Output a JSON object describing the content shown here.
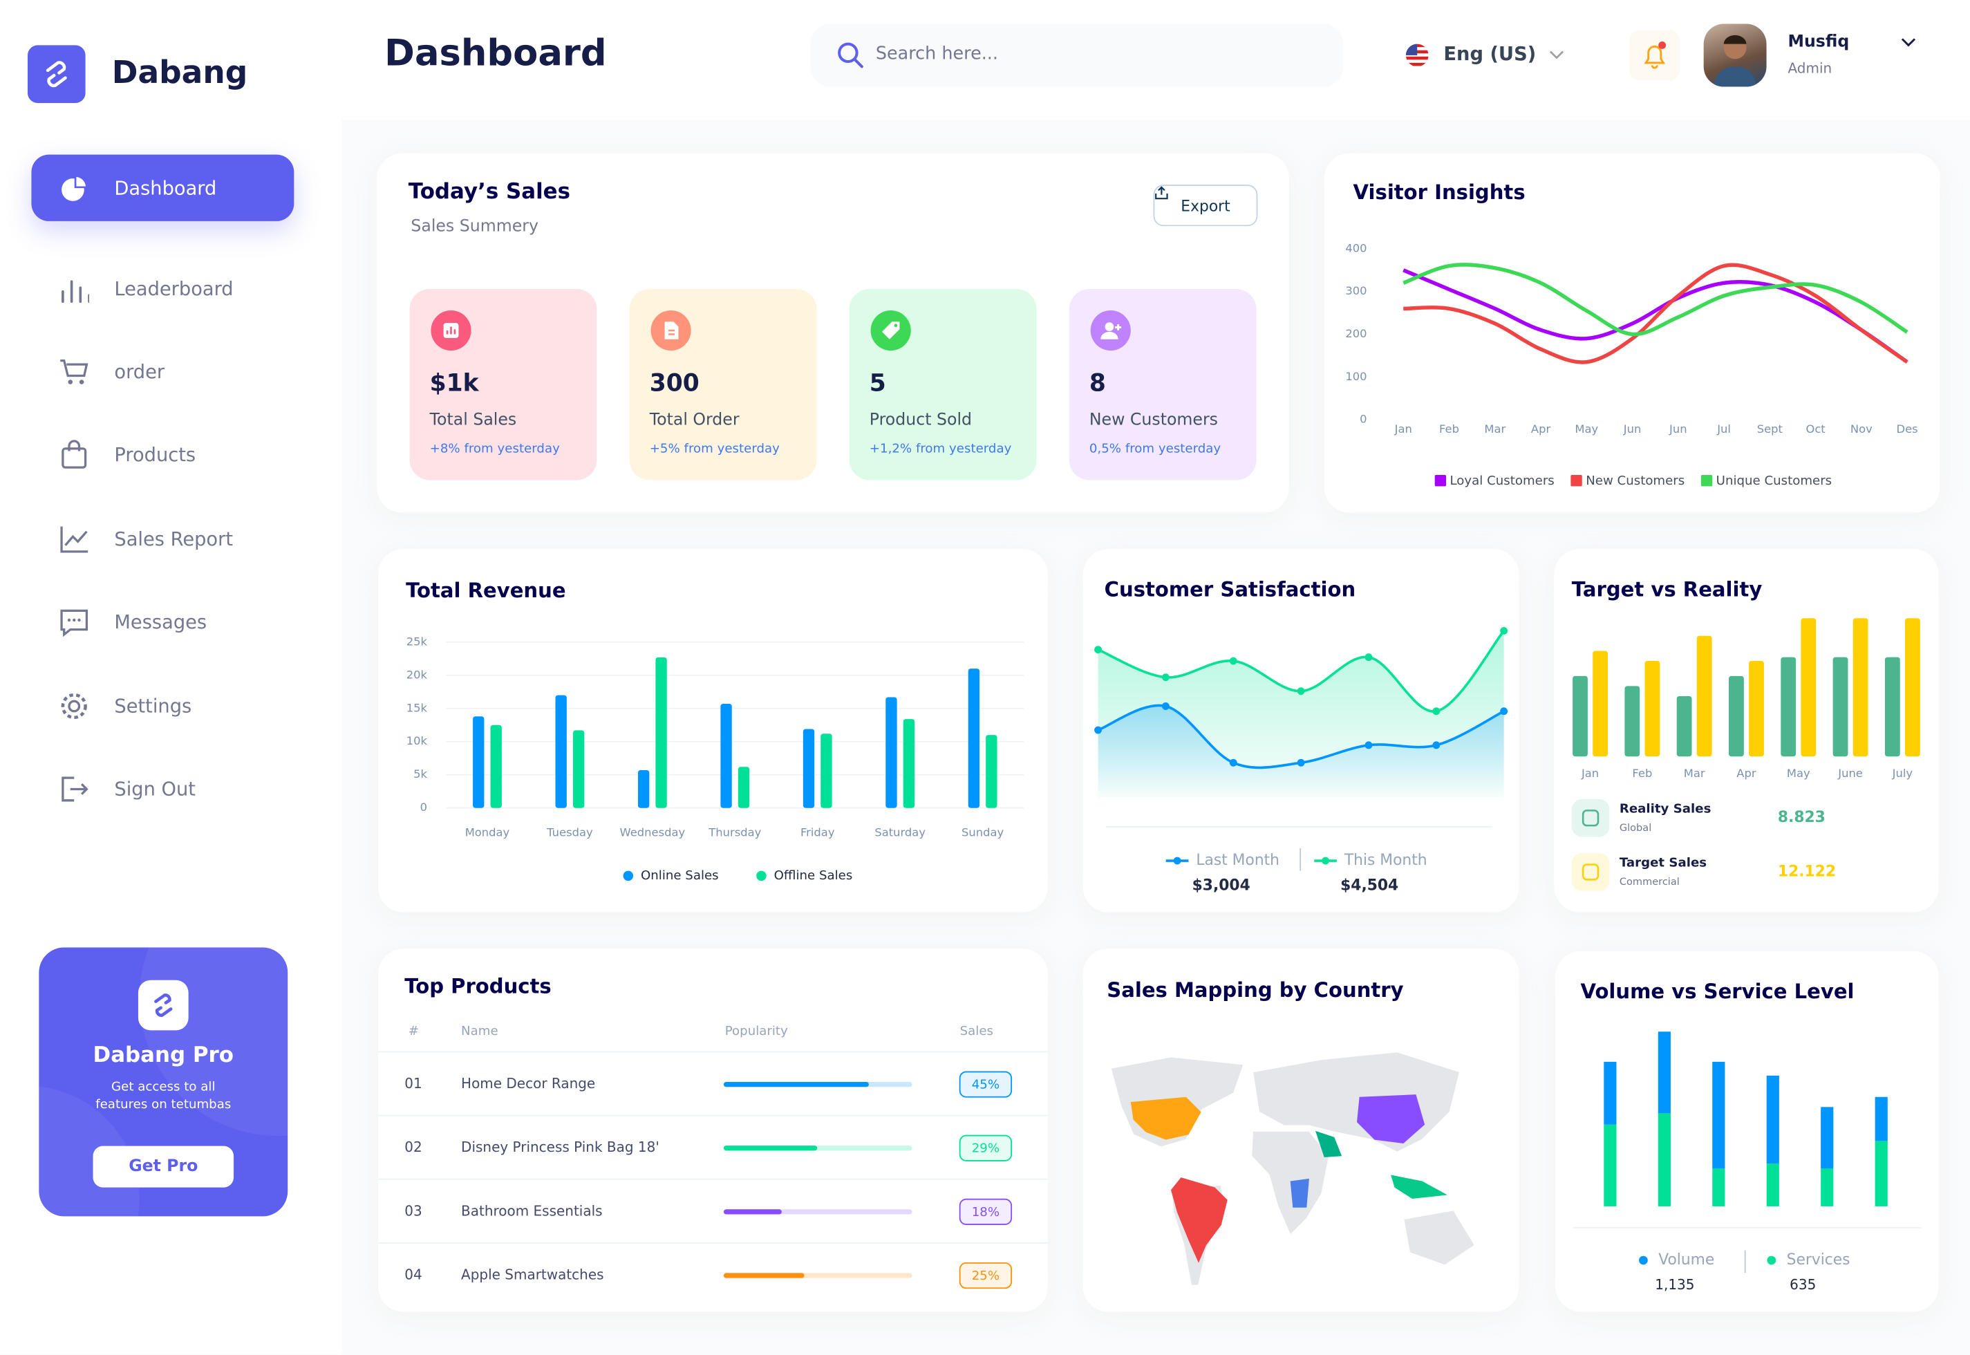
{
  "sidebar": {
    "brand": "Dabang",
    "menu": [
      "Dashboard",
      "Leaderboard",
      "order",
      "Products",
      "Sales Report",
      "Messages",
      "Settings",
      "Sign Out"
    ],
    "promo": {
      "title": "Dabang Pro",
      "text": "Get access to all features on tetumbas",
      "button": "Get Pro"
    }
  },
  "header": {
    "title": "Dashboard",
    "search_placeholder": "Search here...",
    "language": "Eng (US)",
    "user": {
      "name": "Musfiq",
      "role": "Admin"
    }
  },
  "todays_sales": {
    "title": "Today’s Sales",
    "subtitle": "Sales Summery",
    "export": "Export",
    "cards": [
      {
        "value": "$1k",
        "label": "Total Sales",
        "change": "+8% from yesterday"
      },
      {
        "value": 300,
        "label": "Total Order",
        "change": "+5% from yesterday"
      },
      {
        "value": 5,
        "label": "Product Sold",
        "change": "+1,2% from yesterday"
      },
      {
        "value": 8,
        "label": "New Customers",
        "change": "0,5% from yesterday"
      }
    ]
  },
  "chart_data": [
    {
      "type": "line",
      "title": "Visitor Insights",
      "categories": [
        "Jan",
        "Feb",
        "Mar",
        "Apr",
        "May",
        "Jun",
        "Jun",
        "Jul",
        "Sept",
        "Oct",
        "Nov",
        "Des"
      ],
      "ylim": [
        0,
        400
      ],
      "yticks": [
        0,
        100,
        200,
        300,
        400
      ],
      "series": [
        {
          "name": "Loyal Customers",
          "color": "#a700ff",
          "values": [
            350,
            305,
            260,
            210,
            190,
            225,
            285,
            320,
            315,
            275,
            210,
            135
          ]
        },
        {
          "name": "New Customers",
          "color": "#ef4444",
          "values": [
            260,
            260,
            225,
            165,
            135,
            190,
            290,
            360,
            340,
            290,
            210,
            135
          ]
        },
        {
          "name": "Unique Customers",
          "color": "#3cd856",
          "values": [
            320,
            360,
            355,
            320,
            255,
            200,
            240,
            290,
            310,
            315,
            275,
            205
          ]
        }
      ]
    },
    {
      "type": "bar",
      "title": "Total Revenue",
      "categories": [
        "Monday",
        "Tuesday",
        "Wednesday",
        "Thursday",
        "Friday",
        "Saturday",
        "Sunday"
      ],
      "ylim": [
        0,
        25000
      ],
      "grid": true,
      "yticks": [
        0,
        {
          "value": 5000,
          "label": "5k"
        },
        {
          "value": 10000,
          "label": "10k"
        },
        {
          "value": 15000,
          "label": "15k"
        },
        {
          "value": 20000,
          "label": "20k"
        },
        {
          "value": 25000,
          "label": "25k"
        }
      ],
      "series": [
        {
          "name": "Online Sales",
          "color": "#0095ff",
          "values": [
            13800,
            17000,
            5700,
            15700,
            11900,
            16700,
            21000
          ]
        },
        {
          "name": "Offline Sales",
          "color": "#00e096",
          "values": [
            12500,
            11700,
            22700,
            6200,
            11200,
            13400,
            11000
          ]
        }
      ]
    },
    {
      "type": "area",
      "title": "Customer Satisfaction",
      "categories": [
        null,
        null,
        null,
        null,
        null,
        null,
        null
      ],
      "series": [
        {
          "name": "Last Month",
          "color": "#0095ff",
          "total": "$3,004",
          "values": [
            119,
            138,
            93,
            93,
            107,
            107,
            134
          ]
        },
        {
          "name": "This Month",
          "color": "#07e098",
          "total": "$4,504",
          "values": [
            183,
            161,
            174,
            150,
            177,
            134,
            198
          ]
        }
      ]
    },
    {
      "type": "bar",
      "title": "Target vs Reality",
      "categories": [
        "Jan",
        "Feb",
        "Mar",
        "Apr",
        "May",
        "June",
        "July"
      ],
      "series": [
        {
          "name": "Reality Sales",
          "subtitle": "Global",
          "total": "8.823",
          "color": "#4ab58e",
          "values": [
            64,
            56,
            48,
            64,
            79,
            79,
            79
          ]
        },
        {
          "name": "Target Sales",
          "subtitle": "Commercial",
          "total": "12.122",
          "color": "#ffcf00",
          "values": [
            84,
            76,
            96,
            76,
            110,
            110,
            110
          ]
        }
      ]
    },
    {
      "type": "stacked_bar",
      "title": "Volume vs Service Level",
      "categories": [
        null,
        null,
        null,
        null,
        null,
        null
      ],
      "series": [
        {
          "name": "Volume",
          "color": "#0095ff",
          "total": "1,135",
          "values": [
            50,
            65,
            85,
            70,
            49,
            35
          ]
        },
        {
          "name": "Services",
          "color": "#00e096",
          "total": "635",
          "values": [
            65,
            74,
            30,
            34,
            30,
            52
          ]
        }
      ]
    }
  ],
  "top_products": {
    "title": "Top Products",
    "columns": [
      "#",
      "Name",
      "Popularity",
      "Sales"
    ],
    "rows": [
      {
        "rank": "01",
        "name": "Home Decor Range",
        "popularity": {
          "value": 45,
          "label": "45%"
        },
        "color": "#0095ff"
      },
      {
        "rank": "02",
        "name": "Disney Princess Pink Bag 18'",
        "popularity": {
          "value": 29,
          "label": "29%"
        },
        "color": "#00e096"
      },
      {
        "rank": "03",
        "name": "Bathroom Essentials",
        "popularity": {
          "value": 18,
          "label": "18%"
        },
        "color": "#884dff"
      },
      {
        "rank": "04",
        "name": "Apple Smartwatches",
        "popularity": {
          "value": 25,
          "label": "25%"
        },
        "color": "#ff8f0d"
      }
    ]
  },
  "map": {
    "title": "Sales Mapping by Country"
  }
}
